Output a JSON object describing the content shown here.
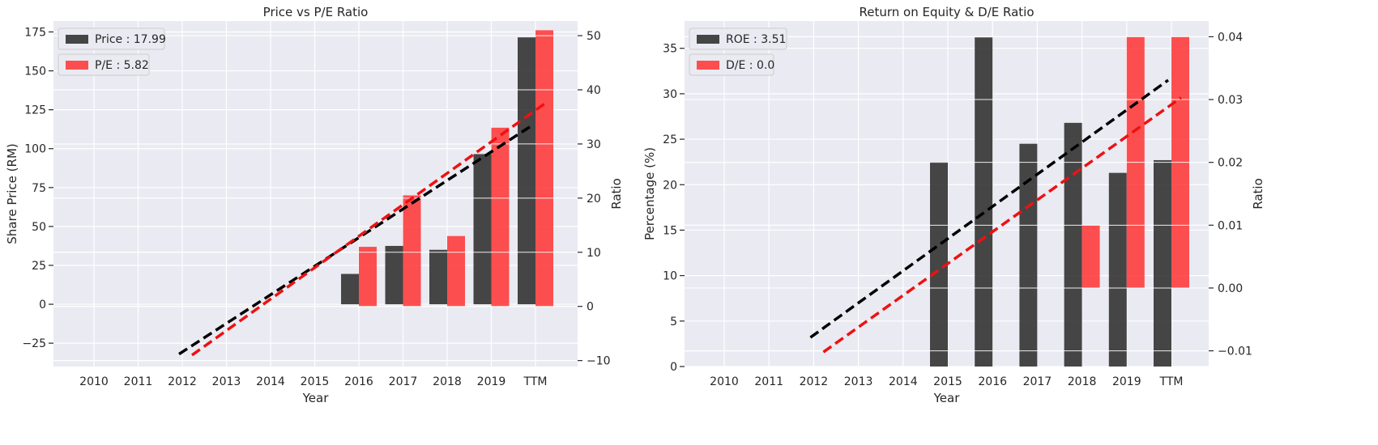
{
  "colors": {
    "background": "#EAEAF2",
    "grid": "#FFFFFF",
    "primary_bar": "#333333",
    "secondary_bar": "#FF3333",
    "primary_trend": "#000000",
    "secondary_trend": "#EE1111"
  },
  "chart_data": [
    {
      "type": "bar",
      "title": "Price vs P/E Ratio",
      "xlabel": "Year",
      "ylabel": "Share Price (RM)",
      "ylabel_right": "Ratio",
      "categories": [
        "2010",
        "2011",
        "2012",
        "2013",
        "2014",
        "2015",
        "2016",
        "2017",
        "2018",
        "2019",
        "TTM"
      ],
      "ylim": [
        -40,
        182
      ],
      "yticks": [
        -25,
        0,
        25,
        50,
        75,
        100,
        125,
        150,
        175
      ],
      "ylim_right": [
        -11.1,
        52.7
      ],
      "yticks_right": [
        -10,
        0,
        10,
        20,
        30,
        40,
        50
      ],
      "grid": true,
      "legend_position": "top-left",
      "series": [
        {
          "name": "Price : 17.99",
          "axis": "left",
          "values": [
            null,
            null,
            null,
            null,
            null,
            null,
            19.5,
            37.5,
            35.0,
            96.5,
            171.5
          ],
          "trend": {
            "from": 2,
            "to": 10,
            "start": -32,
            "end": 115
          }
        },
        {
          "name": "P/E : 5.82",
          "axis": "right",
          "values": [
            null,
            null,
            null,
            null,
            null,
            null,
            11.0,
            20.5,
            13.0,
            33.0,
            51.0
          ],
          "trend": {
            "from": 2,
            "to": 10,
            "start": -9.0,
            "end": 37.5
          }
        }
      ]
    },
    {
      "type": "bar",
      "title": "Return on Equity & D/E Ratio",
      "xlabel": "Year",
      "ylabel": "Percentage (%)",
      "ylabel_right": "Ratio",
      "categories": [
        "2010",
        "2011",
        "2012",
        "2013",
        "2014",
        "2015",
        "2016",
        "2017",
        "2018",
        "2019",
        "TTM"
      ],
      "ylim": [
        0,
        38
      ],
      "yticks": [
        0,
        5,
        10,
        15,
        20,
        25,
        30,
        35
      ],
      "ylim_right": [
        -0.0125,
        0.0425
      ],
      "yticks_right": [
        -0.01,
        0.0,
        0.01,
        0.02,
        0.03,
        0.04
      ],
      "ytick_labels_right": [
        "−0.01",
        "0.00",
        "0.01",
        "0.02",
        "0.03",
        "0.04"
      ],
      "grid": true,
      "legend_position": "top-left",
      "series": [
        {
          "name": "ROE : 3.51",
          "axis": "left",
          "values": [
            null,
            null,
            null,
            null,
            null,
            22.5,
            36.2,
            24.5,
            26.8,
            21.3,
            22.7
          ],
          "trend": {
            "from": 2,
            "to": 10,
            "start": 3.2,
            "end": 31.5
          }
        },
        {
          "name": "D/E : 0.0",
          "axis": "right",
          "values": [
            null,
            null,
            null,
            null,
            null,
            null,
            null,
            null,
            0.01,
            0.04,
            0.04
          ],
          "trend": {
            "from": 2,
            "to": 10,
            "start": -0.0102,
            "end": 0.0303
          }
        }
      ]
    }
  ]
}
